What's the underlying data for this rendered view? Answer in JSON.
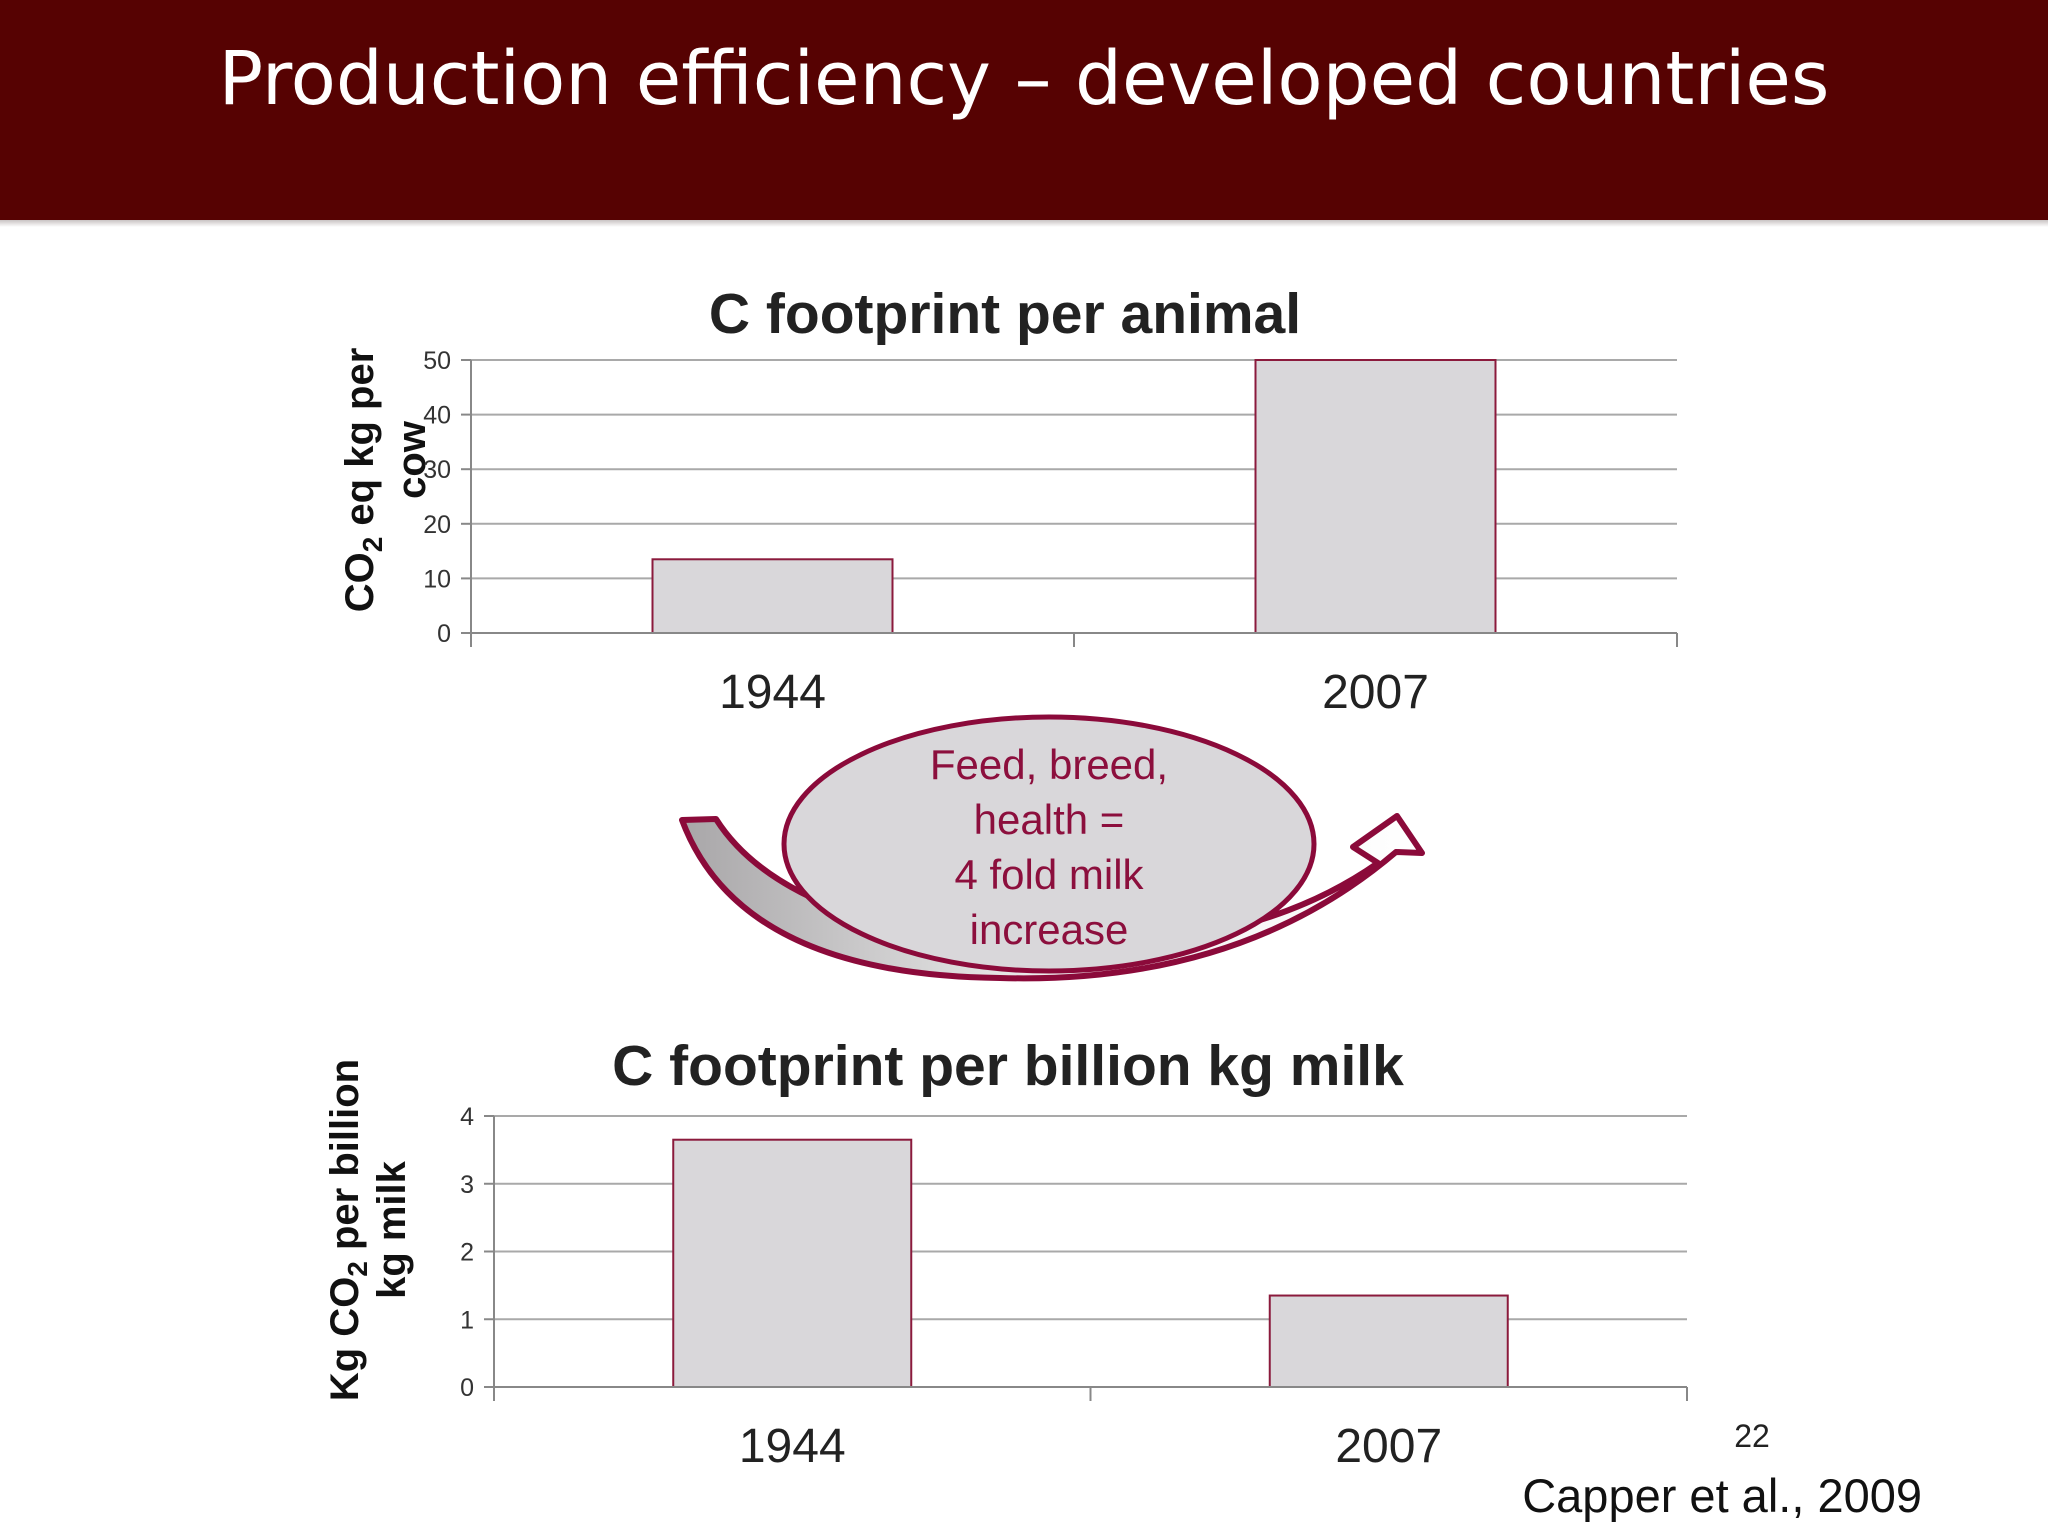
{
  "slide": {
    "title": "Production efficiency – developed countries",
    "slide_number": "22",
    "citation": "Capper et al., 2009"
  },
  "colors": {
    "title_bar": "#560202",
    "bar_fill": "#d9d7da",
    "bar_stroke": "#8b1a3c",
    "callout_stroke": "#8b0a3a",
    "callout_text": "#8c0f3d"
  },
  "callout": {
    "lines": [
      "Feed, breed,",
      "health =",
      "4 fold milk",
      "increase"
    ]
  },
  "chart_data": [
    {
      "type": "bar",
      "title": "C footprint per animal",
      "ylabel_parts": [
        "CO",
        "2",
        " eq kg per"
      ],
      "ylabel_line2": "cow",
      "categories": [
        "1944",
        "2007"
      ],
      "values": [
        13.5,
        50
      ],
      "ylim": [
        0,
        50
      ],
      "yticks": [
        "0",
        "10",
        "20",
        "30",
        "40",
        "50"
      ],
      "grid": true
    },
    {
      "type": "bar",
      "title": "C footprint per billion kg milk",
      "ylabel_parts": [
        "Kg CO",
        "2",
        " per billion"
      ],
      "ylabel_line2": "kg milk",
      "categories": [
        "1944",
        "2007"
      ],
      "values": [
        3.65,
        1.35
      ],
      "ylim": [
        0,
        4
      ],
      "yticks": [
        "0",
        "1",
        "2",
        "3",
        "4"
      ],
      "grid": true
    }
  ]
}
